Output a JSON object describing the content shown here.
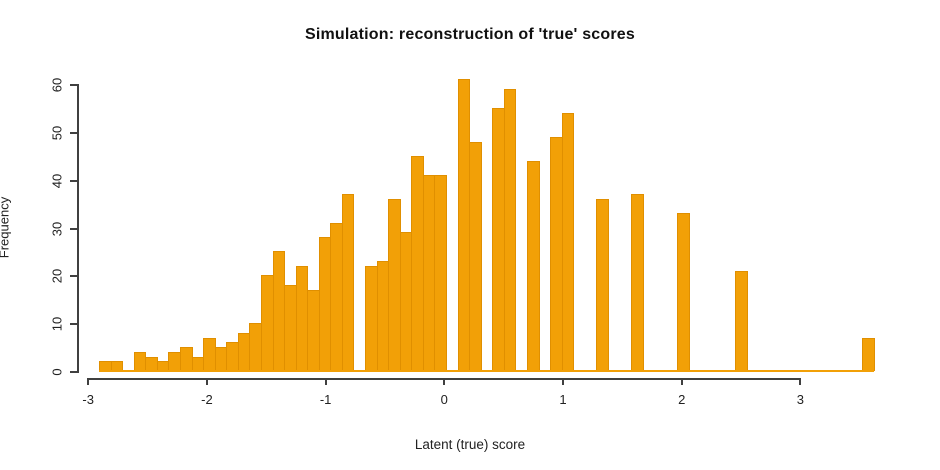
{
  "chart_data": {
    "type": "bar",
    "subtype": "histogram",
    "title": "Simulation: reconstruction of 'true' scores",
    "xlabel": "Latent (true) score",
    "ylabel": "Frequency",
    "first_bin_start": -2.9,
    "bin_width": 0.1,
    "counts": [
      2,
      2,
      0,
      4,
      3,
      2,
      4,
      5,
      3,
      7,
      5,
      6,
      8,
      10,
      20,
      25,
      18,
      22,
      17,
      28,
      31,
      37,
      0,
      22,
      23,
      36,
      29,
      45,
      41,
      41,
      0,
      61,
      48,
      0,
      55,
      59,
      0,
      44,
      0,
      49,
      54,
      0,
      0,
      36,
      0,
      0,
      37,
      0,
      0,
      0,
      33,
      0,
      0,
      0,
      0,
      21,
      0,
      0,
      0,
      0,
      0,
      0,
      0,
      0,
      0,
      0,
      7
    ],
    "x_ticks": [
      -3,
      -2,
      -1,
      0,
      1,
      2,
      3
    ],
    "y_ticks": [
      0,
      10,
      20,
      30,
      40,
      50,
      60
    ],
    "xlim": [
      -3,
      3.7
    ],
    "ylim": [
      0,
      61
    ],
    "grid": false,
    "legend": "none",
    "bar_fill_color": "#F2A007",
    "bar_border_color": "#E08F00",
    "axis_color": "#404040",
    "text_color": "#222222"
  }
}
